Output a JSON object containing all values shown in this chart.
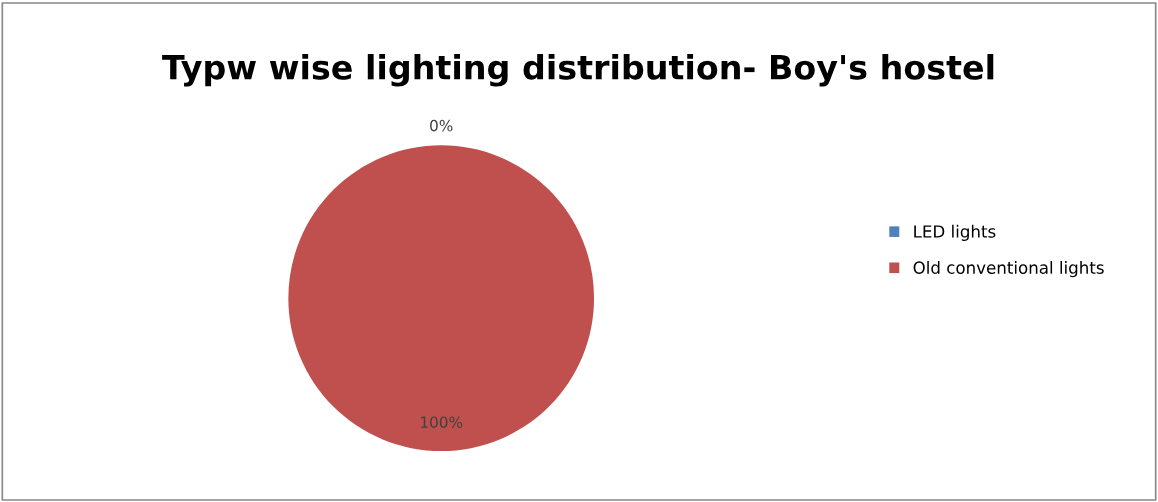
{
  "chart_data": {
    "type": "pie",
    "title": "Typw wise lighting distribution- Boy's hostel",
    "categories": [
      "LED lights",
      "Old conventional lights"
    ],
    "values": [
      0,
      100
    ],
    "colors": [
      "#4f81bd",
      "#c0504d"
    ],
    "value_labels": [
      "0%",
      "100%"
    ],
    "legend": "right"
  }
}
